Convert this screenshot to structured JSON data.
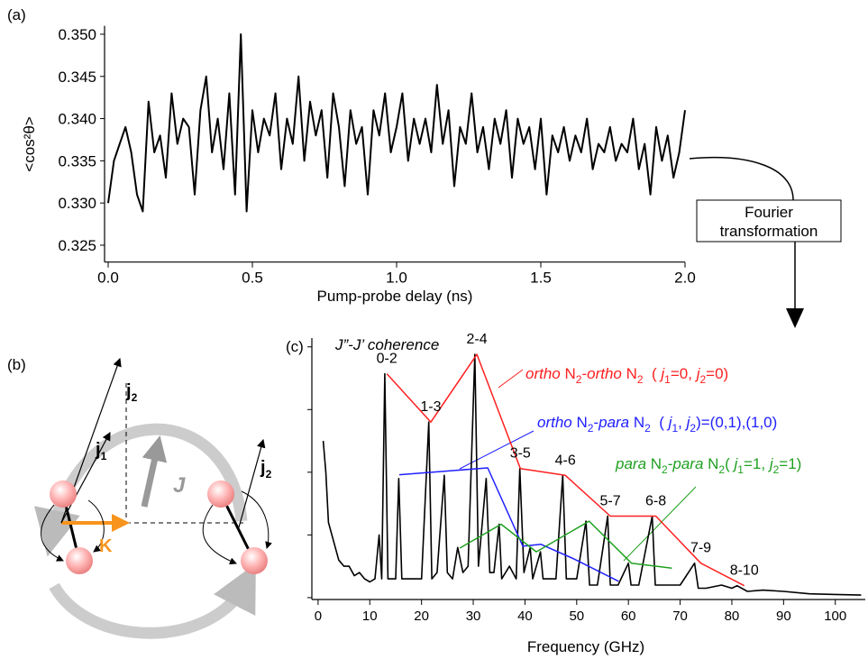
{
  "chart_data": [
    {
      "type": "line",
      "panel_label": "(a)",
      "xlabel": "Pump-probe delay (ns)",
      "ylabel": "<cos²θ>",
      "color": "#000000",
      "xlim": [
        -0.0125,
        2.0
      ],
      "ylim": [
        0.323,
        0.351
      ],
      "xticks": [
        {
          "value": 0,
          "label": "0.0"
        },
        0.5,
        {
          "value": 1,
          "label": "1.0"
        },
        1.5,
        {
          "value": 2,
          "label": "2.0"
        }
      ],
      "yticks": [
        0.325,
        {
          "value": 0.33,
          "label": "0.330"
        },
        0.335,
        {
          "value": 0.34,
          "label": "0.340"
        },
        0.345,
        {
          "value": 0.35,
          "label": "0.350"
        }
      ],
      "x": [
        0,
        0.02,
        0.04,
        0.06,
        0.08,
        0.1,
        0.12,
        0.14,
        0.16,
        0.18,
        0.2,
        0.22,
        0.24,
        0.26,
        0.28,
        0.3,
        0.32,
        0.34,
        0.36,
        0.38,
        0.4,
        0.42,
        0.44,
        0.46,
        0.48,
        0.5,
        0.52,
        0.54,
        0.56,
        0.58,
        0.6,
        0.62,
        0.64,
        0.66,
        0.68,
        0.7,
        0.72,
        0.74,
        0.76,
        0.78,
        0.8,
        0.82,
        0.84,
        0.86,
        0.88,
        0.9,
        0.92,
        0.94,
        0.96,
        0.98,
        1.0,
        1.02,
        1.04,
        1.06,
        1.08,
        1.1,
        1.12,
        1.14,
        1.16,
        1.18,
        1.2,
        1.22,
        1.24,
        1.26,
        1.28,
        1.3,
        1.32,
        1.34,
        1.36,
        1.38,
        1.4,
        1.42,
        1.44,
        1.46,
        1.48,
        1.5,
        1.52,
        1.54,
        1.56,
        1.58,
        1.6,
        1.62,
        1.64,
        1.66,
        1.68,
        1.7,
        1.72,
        1.74,
        1.76,
        1.78,
        1.8,
        1.82,
        1.84,
        1.86,
        1.88,
        1.9,
        1.92,
        1.94,
        1.96,
        1.98,
        2.0
      ],
      "values": [
        0.33,
        0.335,
        0.337,
        0.339,
        0.336,
        0.331,
        0.329,
        0.342,
        0.336,
        0.338,
        0.333,
        0.343,
        0.337,
        0.34,
        0.339,
        0.331,
        0.341,
        0.345,
        0.336,
        0.34,
        0.334,
        0.343,
        0.331,
        0.35,
        0.329,
        0.341,
        0.336,
        0.34,
        0.338,
        0.343,
        0.334,
        0.34,
        0.337,
        0.345,
        0.335,
        0.342,
        0.338,
        0.341,
        0.333,
        0.343,
        0.339,
        0.332,
        0.341,
        0.337,
        0.339,
        0.331,
        0.341,
        0.338,
        0.343,
        0.336,
        0.339,
        0.343,
        0.335,
        0.34,
        0.337,
        0.34,
        0.336,
        0.344,
        0.337,
        0.341,
        0.332,
        0.339,
        0.337,
        0.343,
        0.336,
        0.339,
        0.334,
        0.34,
        0.337,
        0.341,
        0.333,
        0.34,
        0.337,
        0.339,
        0.334,
        0.34,
        0.331,
        0.338,
        0.336,
        0.339,
        0.335,
        0.338,
        0.336,
        0.34,
        0.334,
        0.337,
        0.336,
        0.339,
        0.335,
        0.337,
        0.336,
        0.34,
        0.334,
        0.337,
        0.331,
        0.339,
        0.335,
        0.338,
        0.333,
        0.336,
        0.341
      ]
    },
    {
      "type": "line",
      "panel_label": "(c)",
      "title": "J”-J’ coherence",
      "xlabel": "Frequency (GHz)",
      "xlim": [
        -1.2,
        105.8
      ],
      "ylim": [
        -0.03,
        4.14
      ],
      "xticks": [
        0,
        10,
        20,
        30,
        40,
        50,
        60,
        70,
        80,
        90,
        100
      ],
      "yticks": [
        0,
        1,
        2,
        3,
        4
      ],
      "show_ytick_labels": false,
      "series": [
        {
          "color": "#000000",
          "x": [
            1,
            1.5,
            2,
            3,
            4,
            5,
            6,
            7,
            8,
            9,
            10,
            11,
            11.8,
            12.3,
            12.9,
            13.5,
            15,
            15.6,
            16.2,
            18,
            19,
            20,
            21.4,
            22,
            23,
            24.4,
            25,
            26,
            27,
            28,
            29,
            30.3,
            31,
            32.5,
            33.2,
            34,
            35,
            35.5,
            37,
            38.3,
            39,
            39.8,
            41,
            41.5,
            43,
            43.5,
            45,
            46,
            47.3,
            48,
            50,
            51.8,
            52.5,
            54,
            56,
            56.5,
            58,
            60,
            60.5,
            62,
            64.6,
            65.2,
            67,
            68,
            70,
            72.8,
            73.5,
            75,
            78,
            80,
            81,
            83,
            86,
            90,
            95,
            100,
            105
          ],
          "values": [
            2.5,
            2.0,
            1.2,
            0.9,
            0.6,
            0.5,
            0.5,
            0.35,
            0.4,
            0.3,
            0.25,
            0.3,
            1.0,
            0.3,
            3.57,
            0.3,
            0.3,
            1.9,
            0.3,
            0.3,
            0.3,
            0.3,
            2.8,
            0.3,
            0.4,
            1.95,
            0.4,
            0.3,
            0.8,
            0.4,
            0.5,
            3.88,
            0.5,
            1.9,
            0.4,
            0.4,
            1.17,
            0.3,
            0.5,
            0.3,
            2.06,
            0.4,
            0.8,
            0.3,
            0.73,
            0.3,
            0.3,
            0.3,
            1.95,
            0.3,
            0.3,
            1.22,
            0.2,
            0.2,
            1.3,
            0.2,
            0.2,
            0.55,
            0.2,
            0.2,
            1.3,
            0.2,
            0.2,
            0.2,
            0.2,
            0.55,
            0.15,
            0.15,
            0.2,
            0.15,
            0.19,
            0.1,
            0.12,
            0.1,
            0.06,
            0.05,
            0.04
          ]
        },
        {
          "color": "#ff2020",
          "x": [
            13.3,
            21.8,
            30.7,
            39.1,
            47.8,
            56.5,
            65.3,
            74.0,
            82.4
          ],
          "values": [
            3.57,
            2.8,
            3.88,
            2.06,
            1.95,
            1.3,
            1.3,
            0.55,
            0.19
          ],
          "point_labels": [
            "0-2",
            "1-3",
            "2-4",
            "3-5",
            "4-6",
            "5-7",
            "6-8",
            "7-9",
            "8-10"
          ],
          "label_parts": [
            "ortho",
            " N",
            "2",
            "-",
            "ortho",
            " N",
            "2",
            "  ( ",
            "j",
            "1",
            "=0, ",
            "j",
            "2",
            "=0)"
          ]
        },
        {
          "color": "#2020ff",
          "x": [
            15.7,
            32.8,
            39.6,
            43.1,
            49.4,
            58.1
          ],
          "values": [
            1.96,
            2.07,
            0.82,
            0.85,
            0.62,
            0.26
          ],
          "label_parts": [
            "ortho",
            " N",
            "2",
            "-",
            "para",
            " N",
            "2",
            "  ( ",
            "j",
            "1",
            ", ",
            "j",
            "2",
            ")=(0,1),(1,0)"
          ]
        },
        {
          "color": "#20a020",
          "x": [
            27.4,
            35.4,
            42.2,
            52.4,
            60.6,
            68.4
          ],
          "values": [
            0.79,
            1.17,
            0.73,
            1.22,
            0.55,
            0.47
          ],
          "label_parts": [
            "para",
            " N",
            "2",
            "-",
            "para",
            " N",
            "2",
            "( ",
            "j",
            "1",
            "=1, ",
            "j",
            "2",
            "=1)"
          ]
        }
      ]
    }
  ],
  "diagram": {
    "panel_label": "(b)",
    "vectors": [
      {
        "symbol": "j",
        "subscript": "2"
      },
      {
        "symbol": "j",
        "subscript": "1"
      },
      {
        "symbol": "j",
        "subscript": "2"
      },
      {
        "symbol": "J"
      },
      {
        "symbol": "K"
      }
    ]
  },
  "fourier_box": {
    "lines": [
      "Fourier",
      "transformation"
    ]
  }
}
